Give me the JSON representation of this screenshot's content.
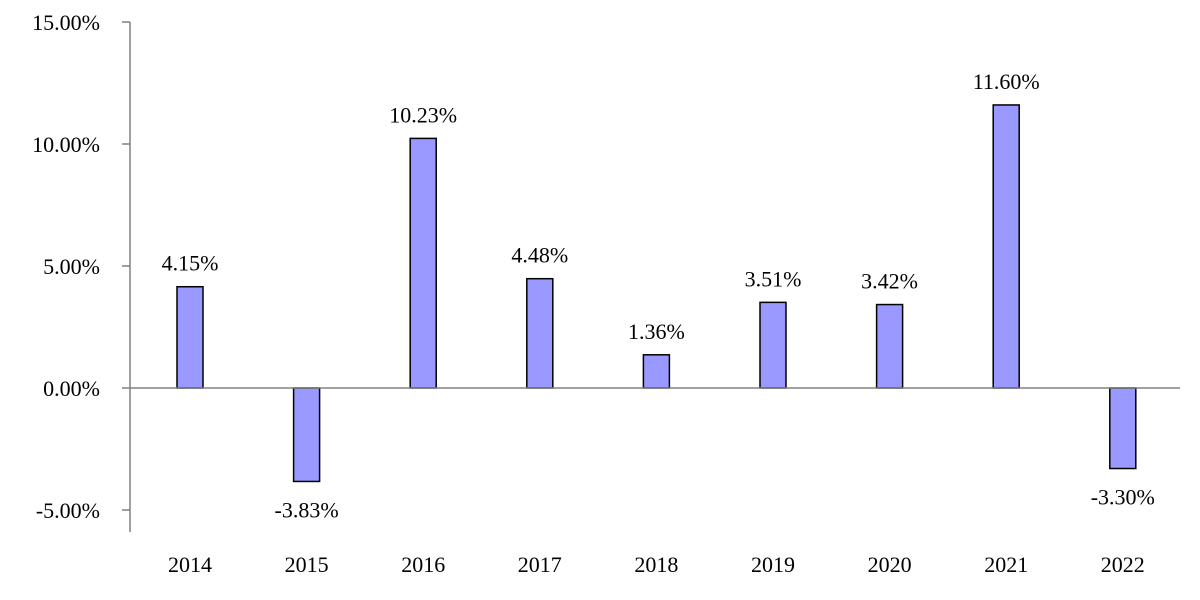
{
  "chart_data": {
    "type": "bar",
    "categories": [
      "2014",
      "2015",
      "2016",
      "2017",
      "2018",
      "2019",
      "2020",
      "2021",
      "2022"
    ],
    "values": [
      4.15,
      -3.83,
      10.23,
      4.48,
      1.36,
      3.51,
      3.42,
      11.6,
      -3.3
    ],
    "data_labels": [
      "4.15%",
      "-3.83%",
      "10.23%",
      "4.48%",
      "1.36%",
      "3.51%",
      "3.42%",
      "11.60%",
      "-3.30%"
    ],
    "ylim": [
      -5,
      15
    ],
    "yticks": [
      15,
      10,
      5,
      0,
      -5
    ],
    "ytick_labels": [
      "15.00%",
      "10.00%",
      "5.00%",
      "0.00%",
      "-5.00%"
    ],
    "title": "",
    "xlabel": "",
    "ylabel": "",
    "grid": false,
    "colors": {
      "bar_fill": "#9999ff",
      "bar_stroke": "#000000",
      "axis": "#808080"
    }
  }
}
